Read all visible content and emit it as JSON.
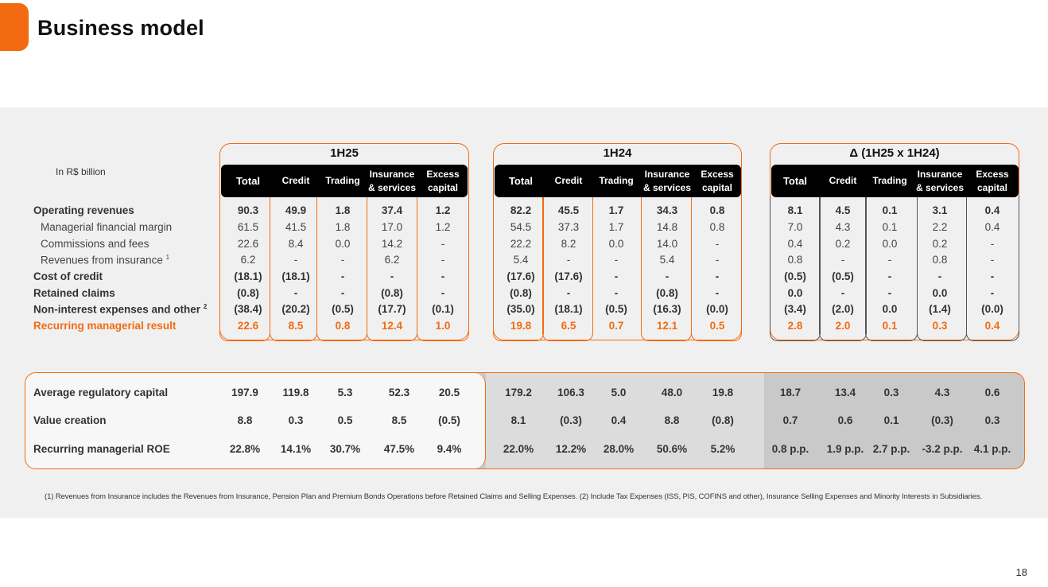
{
  "title": "Business model",
  "unit_label": "In R$ billion",
  "groups": [
    {
      "title": "1H25"
    },
    {
      "title": "1H24"
    },
    {
      "title": "Δ (1H25 x 1H24)"
    }
  ],
  "columns": [
    {
      "line1": "Total",
      "line2": ""
    },
    {
      "line1": "Credit",
      "line2": ""
    },
    {
      "line1": "Trading",
      "line2": ""
    },
    {
      "line1": "Insurance",
      "line2": "& services"
    },
    {
      "line1": "Excess",
      "line2": "capital"
    }
  ],
  "rows": [
    {
      "label": "Operating revenues",
      "sup": "",
      "values": [
        "90.3",
        "49.9",
        "1.8",
        "37.4",
        "1.2",
        "82.2",
        "45.5",
        "1.7",
        "34.3",
        "0.8",
        "8.1",
        "4.5",
        "0.1",
        "3.1",
        "0.4"
      ]
    },
    {
      "label": "Managerial financial margin",
      "sup": "",
      "values": [
        "61.5",
        "41.5",
        "1.8",
        "17.0",
        "1.2",
        "54.5",
        "37.3",
        "1.7",
        "14.8",
        "0.8",
        "7.0",
        "4.3",
        "0.1",
        "2.2",
        "0.4"
      ]
    },
    {
      "label": "Commissions and fees",
      "sup": "",
      "values": [
        "22.6",
        "8.4",
        "0.0",
        "14.2",
        "-",
        "22.2",
        "8.2",
        "0.0",
        "14.0",
        "-",
        "0.4",
        "0.2",
        "0.0",
        "0.2",
        "-"
      ]
    },
    {
      "label": "Revenues from insurance",
      "sup": "1",
      "values": [
        "6.2",
        "-",
        "-",
        "6.2",
        "-",
        "5.4",
        "-",
        "-",
        "5.4",
        "-",
        "0.8",
        "-",
        "-",
        "0.8",
        "-"
      ]
    },
    {
      "label": "Cost of credit",
      "sup": "",
      "values": [
        "(18.1)",
        "(18.1)",
        "-",
        "-",
        "-",
        "(17.6)",
        "(17.6)",
        "-",
        "-",
        "-",
        "(0.5)",
        "(0.5)",
        "-",
        "-",
        "-"
      ]
    },
    {
      "label": "Retained claims",
      "sup": "",
      "values": [
        "(0.8)",
        "-",
        "-",
        "(0.8)",
        "-",
        "(0.8)",
        "-",
        "-",
        "(0.8)",
        "-",
        "0.0",
        "-",
        "-",
        "0.0",
        "-"
      ]
    },
    {
      "label": "Non-interest expenses and other",
      "sup": "2",
      "values": [
        "(38.4)",
        "(20.2)",
        "(0.5)",
        "(17.7)",
        "(0.1)",
        "(35.0)",
        "(18.1)",
        "(0.5)",
        "(16.3)",
        "(0.0)",
        "(3.4)",
        "(2.0)",
        "0.0",
        "(1.4)",
        "(0.0)"
      ]
    },
    {
      "label": "Recurring managerial result",
      "sup": "",
      "values": [
        "22.6",
        "8.5",
        "0.8",
        "12.4",
        "1.0",
        "19.8",
        "6.5",
        "0.7",
        "12.1",
        "0.5",
        "2.8",
        "2.0",
        "0.1",
        "0.3",
        "0.4"
      ]
    }
  ],
  "capital_rows": [
    {
      "label": "Average regulatory capital",
      "values": [
        "197.9",
        "119.8",
        "5.3",
        "52.3",
        "20.5",
        "179.2",
        "106.3",
        "5.0",
        "48.0",
        "19.8",
        "18.7",
        "13.4",
        "0.3",
        "4.3",
        "0.6"
      ]
    },
    {
      "label": "Value creation",
      "values": [
        "8.8",
        "0.3",
        "0.5",
        "8.5",
        "(0.5)",
        "8.1",
        "(0.3)",
        "0.4",
        "8.8",
        "(0.8)",
        "0.7",
        "0.6",
        "0.1",
        "(0.3)",
        "0.3"
      ]
    },
    {
      "label": "Recurring managerial ROE",
      "values": [
        "22.8%",
        "14.1%",
        "30.7%",
        "47.5%",
        "9.4%",
        "22.0%",
        "12.2%",
        "28.0%",
        "50.6%",
        "5.2%",
        "0.8 p.p.",
        "1.9 p.p.",
        "2.7 p.p.",
        "-3.2 p.p.",
        "4.1 p.p."
      ]
    }
  ],
  "footnote": "(1) Revenues from Insurance includes the Revenues from Insurance, Pension Plan and Premium Bonds Operations before Retained Claims and Selling Expenses. (2) Include Tax Expenses (ISS, PIS, COFINS and other), Insurance Selling Expenses and Minority Interests in Subsidiaries.",
  "page_number": "18",
  "colors": {
    "accent": "#f26b11",
    "header": "#000000",
    "panel": "#f0f0f0"
  }
}
